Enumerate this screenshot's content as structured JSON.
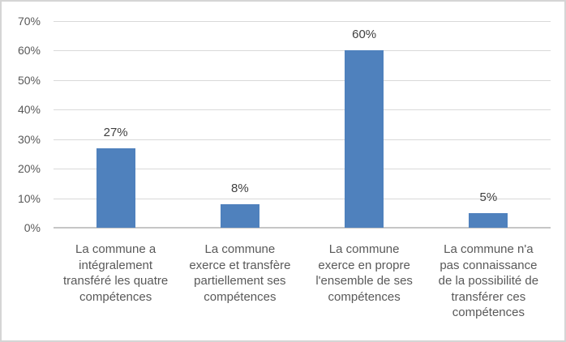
{
  "chart_data": {
    "type": "bar",
    "title": "",
    "categories": [
      "La commune a\nintégralement\ntransféré les quatre\ncompétences",
      "La commune\nexerce et transfère\npartiellement ses\ncompétences",
      "La commune\nexerce en propre\nl'ensemble de ses\ncompétences",
      "La commune n'a\npas connaissance\nde la possibilité de\ntransférer ces\ncompétences"
    ],
    "values": [
      27,
      8,
      60,
      5
    ],
    "data_labels": [
      "27%",
      "8%",
      "60%",
      "5%"
    ],
    "y_ticks": [
      "0%",
      "10%",
      "20%",
      "30%",
      "40%",
      "50%",
      "60%",
      "70%"
    ],
    "y_tick_values": [
      0,
      10,
      20,
      30,
      40,
      50,
      60,
      70
    ],
    "ylim": [
      0,
      70
    ],
    "xlabel": "",
    "ylabel": "",
    "legend": null,
    "grid": true,
    "colors": {
      "bar": "#4F81BD",
      "gridline": "#D9D9D9",
      "axis_line": "#C6C6C6",
      "tick_label": "#595959",
      "category_label": "#595959",
      "data_label": "#3F3F3F",
      "frame_border": "#D5D5D5",
      "background": "#FFFFFF"
    }
  }
}
